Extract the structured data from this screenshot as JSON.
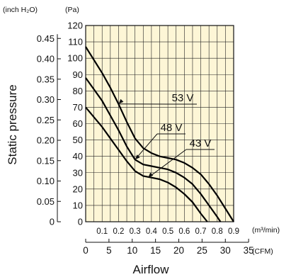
{
  "chart_data": {
    "type": "line",
    "ylabel": "Static pressure",
    "xlabel": "Airflow",
    "y_units": {
      "inch": "(inch H₂O)",
      "pa": "(Pa)"
    },
    "x_units": {
      "m3min": "(m³/min)",
      "cfm": "(CFM)"
    },
    "y_pa_ticks": [
      "0",
      "10",
      "20",
      "30",
      "40",
      "50",
      "60",
      "70",
      "80",
      "90",
      "100",
      "110",
      "120"
    ],
    "y_inch_ticks": [
      {
        "label": "0",
        "value": 0
      },
      {
        "label": "0.05",
        "value": 0.05
      },
      {
        "label": "0.10",
        "value": 0.1
      },
      {
        "label": "0.15",
        "value": 0.15
      },
      {
        "label": "0.20",
        "value": 0.2
      },
      {
        "label": "0.25",
        "value": 0.25
      },
      {
        "label": "0.30",
        "value": 0.3
      },
      {
        "label": "0.35",
        "value": 0.35
      },
      {
        "label": "0.40",
        "value": 0.4
      },
      {
        "label": "0.45",
        "value": 0.45
      }
    ],
    "x_m3min_ticks": [
      "0.1",
      "0.2",
      "0.3",
      "0.4",
      "0.5",
      "0.6",
      "0.7",
      "0.8",
      "0.9"
    ],
    "x_cfm_ticks": [
      {
        "label": "0",
        "value": 0
      },
      {
        "label": "5",
        "value": 5
      },
      {
        "label": "10",
        "value": 10
      },
      {
        "label": "15",
        "value": 15
      },
      {
        "label": "20",
        "value": 20
      },
      {
        "label": "25",
        "value": 25
      },
      {
        "label": "30",
        "value": 30
      },
      {
        "label": "35",
        "value": 35
      }
    ],
    "xlim": [
      0,
      0.9
    ],
    "ylim": [
      0,
      120
    ],
    "series": [
      {
        "name": "53 V",
        "x": [
          0,
          0.05,
          0.1,
          0.15,
          0.2,
          0.25,
          0.3,
          0.35,
          0.4,
          0.45,
          0.5,
          0.55,
          0.6,
          0.65,
          0.7,
          0.75,
          0.8,
          0.85,
          0.9
        ],
        "y": [
          107,
          99,
          91,
          82,
          72,
          61,
          51,
          45,
          42,
          40,
          39,
          38,
          36,
          33,
          29,
          23,
          16,
          8,
          0
        ]
      },
      {
        "name": "48 V",
        "x": [
          0,
          0.05,
          0.1,
          0.15,
          0.2,
          0.25,
          0.3,
          0.35,
          0.4,
          0.45,
          0.5,
          0.55,
          0.6,
          0.65,
          0.7,
          0.75,
          0.8,
          0.82
        ],
        "y": [
          88,
          81,
          74,
          65,
          56,
          46,
          38,
          35,
          34,
          33,
          32,
          30,
          27,
          23,
          17,
          10,
          3,
          0
        ]
      },
      {
        "name": "43 V",
        "x": [
          0,
          0.05,
          0.1,
          0.15,
          0.2,
          0.25,
          0.3,
          0.35,
          0.4,
          0.45,
          0.5,
          0.55,
          0.6,
          0.65,
          0.7,
          0.74
        ],
        "y": [
          70,
          64,
          58,
          51,
          44,
          37,
          31,
          28,
          27,
          26,
          24,
          21,
          17,
          12,
          5,
          0
        ]
      }
    ],
    "annotations": [
      {
        "text": "53 V",
        "series": "53 V"
      },
      {
        "text": "48 V",
        "series": "48 V"
      },
      {
        "text": "43 V",
        "series": "43 V"
      }
    ],
    "background_color": "#fdf6d6",
    "grid": true,
    "line_color": "#000000"
  }
}
